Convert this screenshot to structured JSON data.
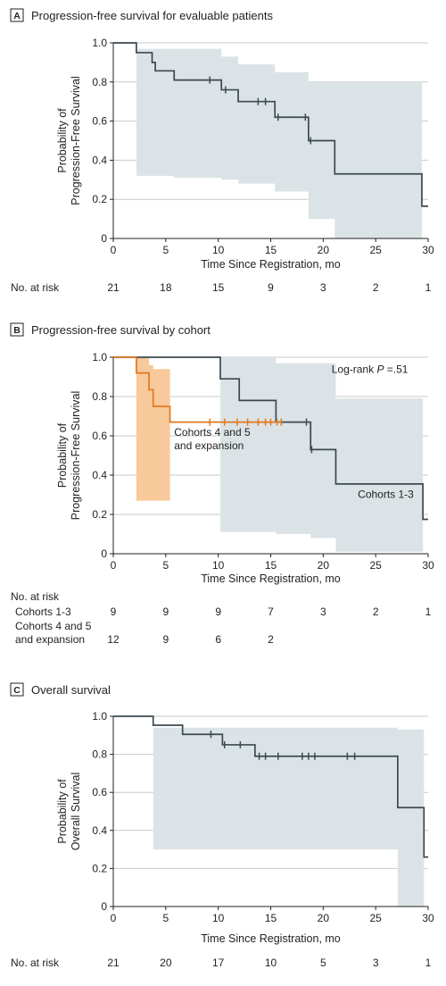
{
  "chart_data": [
    {
      "type": "line",
      "panel": "A",
      "title": "Progression-free survival for evaluable patients",
      "xlabel": "Time Since Registration, mo",
      "ylabel": "Probability of Progression-Free Survival",
      "xlim": [
        0,
        30
      ],
      "ylim": [
        0,
        1.0
      ],
      "xticks": [
        0,
        5,
        10,
        15,
        20,
        25,
        30
      ],
      "yticks": [
        0,
        0.2,
        0.4,
        0.6,
        0.8,
        1.0
      ],
      "grid": "horizontal",
      "series": [
        {
          "color": "#3b4a50",
          "steps": [
            [
              0,
              1.0
            ],
            [
              2.2,
              0.95
            ],
            [
              3.7,
              0.9
            ],
            [
              4.0,
              0.857
            ],
            [
              5.8,
              0.81
            ],
            [
              10.3,
              0.76
            ],
            [
              11.9,
              0.7
            ],
            [
              15.4,
              0.62
            ],
            [
              18.6,
              0.5
            ],
            [
              21.1,
              0.33
            ],
            [
              29.4,
              0.165
            ],
            [
              30,
              0.165
            ]
          ],
          "censored": [
            [
              9.2,
              0.81
            ],
            [
              10.7,
              0.76
            ],
            [
              13.8,
              0.7
            ],
            [
              14.5,
              0.7
            ],
            [
              15.7,
              0.62
            ],
            [
              18.3,
              0.62
            ],
            [
              18.8,
              0.5
            ]
          ],
          "ci": [
            [
              0,
              1.0,
              1.0
            ],
            [
              2.2,
              0.97,
              0.32
            ],
            [
              5.8,
              0.97,
              0.31
            ],
            [
              10.3,
              0.93,
              0.3
            ],
            [
              11.9,
              0.89,
              0.28
            ],
            [
              15.4,
              0.85,
              0.24
            ],
            [
              18.6,
              0.8,
              0.1
            ],
            [
              21.1,
              0.8,
              0.0
            ],
            [
              29.4,
              0.8,
              0.0
            ]
          ]
        }
      ],
      "risk_table": {
        "header": "No. at risk",
        "x": [
          0,
          5,
          10,
          15,
          20,
          25,
          30
        ],
        "rows": [
          {
            "label": "",
            "values": [
              "21",
              "18",
              "15",
              "9",
              "3",
              "2",
              "1"
            ]
          }
        ]
      }
    },
    {
      "type": "line",
      "panel": "B",
      "title": "Progression-free survival by cohort",
      "xlabel": "Time Since Registration, mo",
      "ylabel": "Probability of Progression-Free Survival",
      "xlim": [
        0,
        30
      ],
      "ylim": [
        0,
        1.0
      ],
      "xticks": [
        0,
        5,
        10,
        15,
        20,
        25,
        30
      ],
      "yticks": [
        0,
        0.2,
        0.4,
        0.6,
        0.8,
        1.0
      ],
      "grid": "horizontal",
      "annotation_prefix": "Log-rank ",
      "annotation_italic": "P",
      "annotation_suffix": " =.51",
      "series": [
        {
          "name": "Cohorts 1-3",
          "color": "#3b4a50",
          "steps": [
            [
              0,
              1.0
            ],
            [
              10.2,
              0.89
            ],
            [
              12.0,
              0.78
            ],
            [
              15.5,
              0.67
            ],
            [
              18.8,
              0.53
            ],
            [
              21.2,
              0.355
            ],
            [
              29.5,
              0.175
            ],
            [
              30,
              0.175
            ]
          ],
          "censored": [
            [
              18.4,
              0.67
            ],
            [
              18.9,
              0.53
            ]
          ],
          "ci": [
            [
              10.2,
              1.0,
              0.11
            ],
            [
              15.5,
              0.97,
              0.1
            ],
            [
              18.8,
              0.97,
              0.08
            ],
            [
              21.2,
              0.79,
              0.01
            ],
            [
              29.5,
              0.79,
              0.01
            ]
          ]
        },
        {
          "name": "Cohorts 4 and 5 and expansion",
          "color": "#e07a20",
          "steps": [
            [
              0,
              1.0
            ],
            [
              2.2,
              0.92
            ],
            [
              3.4,
              0.835
            ],
            [
              3.8,
              0.75
            ],
            [
              5.4,
              0.67
            ],
            [
              16.0,
              0.67
            ]
          ],
          "censored": [
            [
              9.2,
              0.67
            ],
            [
              10.6,
              0.67
            ],
            [
              11.8,
              0.67
            ],
            [
              12.8,
              0.67
            ],
            [
              13.8,
              0.67
            ],
            [
              14.5,
              0.67
            ],
            [
              15.0,
              0.67
            ],
            [
              15.6,
              0.67
            ],
            [
              16.0,
              0.67
            ]
          ],
          "ci": [
            [
              2.2,
              1.0,
              0.27
            ],
            [
              3.4,
              0.96,
              0.27
            ],
            [
              3.8,
              0.94,
              0.27
            ],
            [
              5.4,
              0.94,
              0.27
            ]
          ]
        }
      ],
      "labels": [
        {
          "lines": [
            "Cohorts 4 and 5",
            "and expansion"
          ],
          "x": 5.8,
          "y": 0.6
        },
        {
          "lines": [
            "Cohorts 1-3"
          ],
          "x": 23.3,
          "y": 0.285
        }
      ],
      "risk_table": {
        "header": "No. at risk",
        "x": [
          0,
          5,
          10,
          15,
          20,
          25,
          30
        ],
        "rows": [
          {
            "label": "Cohorts 1-3",
            "values": [
              "9",
              "9",
              "9",
              "7",
              "3",
              "2",
              "1"
            ]
          },
          {
            "label_lines": [
              "Cohorts 4 and 5",
              "and expansion"
            ],
            "values": [
              "12",
              "9",
              "6",
              "2",
              "",
              "",
              ""
            ]
          }
        ]
      }
    },
    {
      "type": "line",
      "panel": "C",
      "title": "Overall survival",
      "xlabel": "Time Since Registration, mo",
      "ylabel": "Probability of Overall Survival",
      "xlim": [
        0,
        30
      ],
      "ylim": [
        0,
        1.0
      ],
      "xticks": [
        0,
        5,
        10,
        15,
        20,
        25,
        30
      ],
      "yticks": [
        0,
        0.2,
        0.4,
        0.6,
        0.8,
        1.0
      ],
      "grid": "horizontal",
      "series": [
        {
          "color": "#3b4a50",
          "steps": [
            [
              0,
              1.0
            ],
            [
              3.8,
              0.953
            ],
            [
              6.6,
              0.905
            ],
            [
              10.4,
              0.85
            ],
            [
              13.5,
              0.79
            ],
            [
              27.1,
              0.52
            ],
            [
              29.6,
              0.26
            ],
            [
              30,
              0.26
            ]
          ],
          "censored": [
            [
              9.3,
              0.905
            ],
            [
              10.6,
              0.85
            ],
            [
              12.1,
              0.85
            ],
            [
              13.9,
              0.79
            ],
            [
              14.5,
              0.79
            ],
            [
              15.7,
              0.79
            ],
            [
              18.0,
              0.79
            ],
            [
              18.6,
              0.79
            ],
            [
              19.2,
              0.79
            ],
            [
              22.3,
              0.79
            ],
            [
              23.0,
              0.79
            ]
          ],
          "ci": [
            [
              0,
              1.0,
              1.0
            ],
            [
              3.8,
              0.94,
              0.3
            ],
            [
              27.1,
              0.94,
              0.3
            ],
            [
              27.1,
              0.93,
              0.0
            ],
            [
              29.6,
              0.93,
              0.0
            ]
          ]
        }
      ],
      "risk_table": {
        "header": "No. at risk",
        "x": [
          0,
          5,
          10,
          15,
          20,
          25,
          30
        ],
        "rows": [
          {
            "label": "",
            "values": [
              "21",
              "20",
              "17",
              "10",
              "5",
              "3",
              "1"
            ]
          }
        ]
      }
    }
  ]
}
